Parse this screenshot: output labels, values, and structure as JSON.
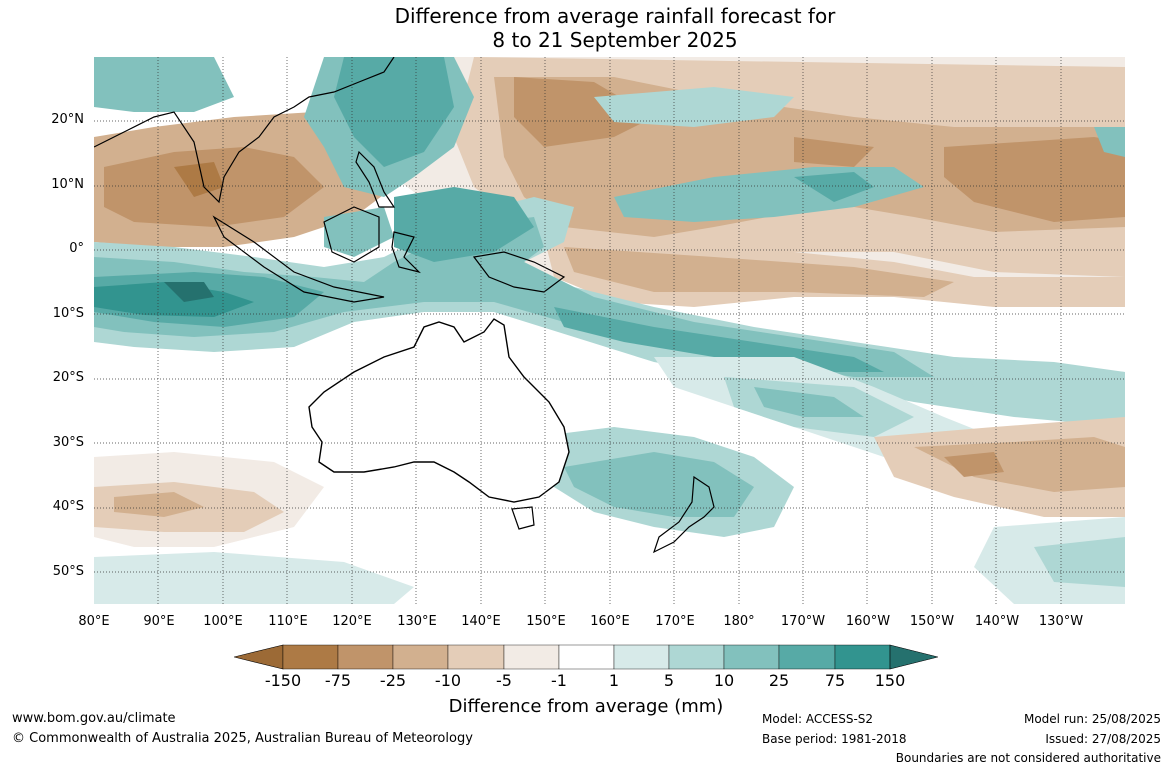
{
  "title": {
    "line1": "Difference from average rainfall forecast for",
    "line2": "8 to 21 September 2025"
  },
  "axes": {
    "lat_labels": [
      "20°N",
      "10°N",
      "0°",
      "10°S",
      "20°S",
      "30°S",
      "40°S",
      "50°S"
    ],
    "lon_labels": [
      "80°E",
      "90°E",
      "100°E",
      "110°E",
      "120°E",
      "130°E",
      "140°E",
      "150°E",
      "160°E",
      "170°E",
      "180°",
      "170°W",
      "160°W",
      "150°W",
      "140°W",
      "130°W"
    ]
  },
  "colorbar": {
    "title": "Difference from average (mm)",
    "ticks": [
      "-150",
      "-75",
      "-25",
      "-10",
      "-5",
      "-1",
      "1",
      "5",
      "10",
      "25",
      "75",
      "150"
    ],
    "colors": {
      "below_min": "#9c6a36",
      "bins": [
        "#ad7a45",
        "#c0946a",
        "#d2b08f",
        "#e4cdb8",
        "#f2ebe5",
        "#ffffff",
        "#d7eae9",
        "#aed7d4",
        "#82c1bd",
        "#57aaa6",
        "#32948f"
      ],
      "above_max": "#25716e"
    }
  },
  "footer": {
    "site": "www.bom.gov.au/climate",
    "copyright": "© Commonwealth of Australia 2025, Australian Bureau of Meteorology",
    "model": "Model: ACCESS-S2",
    "base_period": "Base period: 1981-2018",
    "model_run": "Model run: 25/08/2025",
    "issued": "Issued: 27/08/2025",
    "disclaimer": "Boundaries are not considered authoritative"
  }
}
